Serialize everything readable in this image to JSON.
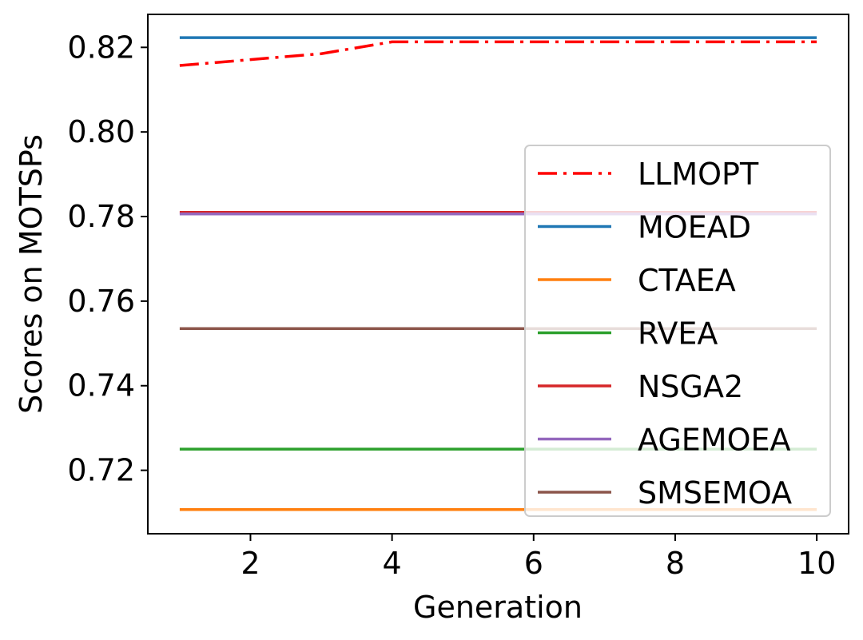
{
  "chart_data": {
    "type": "line",
    "title": "",
    "xlabel": "Generation",
    "ylabel": "Scores on MOTSPs",
    "x": [
      1,
      2,
      3,
      4,
      5,
      6,
      7,
      8,
      9,
      10
    ],
    "xlim": [
      0.55,
      10.45
    ],
    "ylim": [
      0.705,
      0.8278
    ],
    "xticks": [
      2,
      4,
      6,
      8,
      10
    ],
    "yticks": [
      0.72,
      0.74,
      0.76,
      0.78,
      0.8,
      0.82
    ],
    "xtick_labels": [
      "2",
      "4",
      "6",
      "8",
      "10"
    ],
    "ytick_labels": [
      "0.72",
      "0.74",
      "0.76",
      "0.78",
      "0.80",
      "0.82"
    ],
    "grid": false,
    "legend_position": "center-right",
    "series": [
      {
        "name": "LLMOPT",
        "color": "#ff0000",
        "style": "dashdot",
        "values": [
          0.8157,
          0.8171,
          0.8185,
          0.8213,
          0.8213,
          0.8213,
          0.8213,
          0.8213,
          0.8213,
          0.8213
        ]
      },
      {
        "name": "MOEAD",
        "color": "#1f77b4",
        "style": "solid",
        "values": [
          0.8223,
          0.8223,
          0.8223,
          0.8223,
          0.8223,
          0.8223,
          0.8223,
          0.8223,
          0.8223,
          0.8223
        ]
      },
      {
        "name": "CTAEA",
        "color": "#ff7f0e",
        "style": "solid",
        "values": [
          0.7107,
          0.7107,
          0.7107,
          0.7107,
          0.7107,
          0.7107,
          0.7107,
          0.7107,
          0.7107,
          0.7107
        ]
      },
      {
        "name": "RVEA",
        "color": "#2ca02c",
        "style": "solid",
        "values": [
          0.725,
          0.725,
          0.725,
          0.725,
          0.725,
          0.725,
          0.725,
          0.725,
          0.725,
          0.725
        ]
      },
      {
        "name": "NSGA2",
        "color": "#d62728",
        "style": "solid",
        "values": [
          0.781,
          0.781,
          0.781,
          0.781,
          0.781,
          0.781,
          0.781,
          0.781,
          0.781,
          0.781
        ]
      },
      {
        "name": "AGEMOEA",
        "color": "#9467bd",
        "style": "solid",
        "values": [
          0.7806,
          0.7806,
          0.7806,
          0.7806,
          0.7806,
          0.7806,
          0.7806,
          0.7806,
          0.7806,
          0.7806
        ]
      },
      {
        "name": "SMSEMOA",
        "color": "#8c564b",
        "style": "solid",
        "values": [
          0.7535,
          0.7535,
          0.7535,
          0.7535,
          0.7535,
          0.7535,
          0.7535,
          0.7535,
          0.7535,
          0.7535
        ]
      }
    ]
  }
}
